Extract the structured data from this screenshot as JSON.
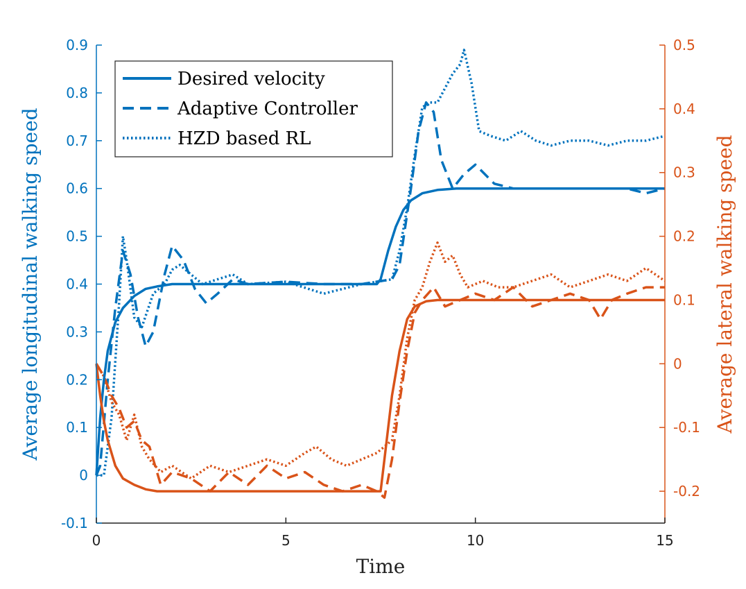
{
  "chart_data": {
    "type": "line",
    "title": "",
    "xlabel": "Time",
    "ylabel_left": "Average longitudinal walking speed",
    "ylabel_right": "Average lateral walking speed",
    "xlim": [
      0,
      15
    ],
    "ylim_left": [
      -0.1,
      0.9
    ],
    "ylim_right": [
      -0.25,
      0.5
    ],
    "xticks": [
      "0",
      "5",
      "10",
      "15"
    ],
    "xtick_values": [
      0,
      5,
      10,
      15
    ],
    "yticks_left": [
      "-0.1",
      "0",
      "0.1",
      "0.2",
      "0.3",
      "0.4",
      "0.5",
      "0.6",
      "0.7",
      "0.8",
      "0.9"
    ],
    "yticks_left_values": [
      -0.1,
      0,
      0.1,
      0.2,
      0.3,
      0.4,
      0.5,
      0.6,
      0.7,
      0.8,
      0.9
    ],
    "yticks_right": [
      "-0.2",
      "-0.1",
      "0",
      "0.1",
      "0.2",
      "0.3",
      "0.4",
      "0.5"
    ],
    "yticks_right_values": [
      -0.2,
      -0.1,
      0,
      0.1,
      0.2,
      0.3,
      0.4,
      0.5
    ],
    "grid": false,
    "legend_position": "top-left",
    "legend": [
      {
        "label": "Desired velocity",
        "style": "solid"
      },
      {
        "label": "Adaptive Controller",
        "style": "dashed"
      },
      {
        "label": "HZD based RL",
        "style": "dotted"
      }
    ],
    "colors": {
      "left": "#0072BD",
      "right": "#D95319"
    },
    "series": [
      {
        "name": "Desired velocity (longitudinal)",
        "axis": "left",
        "style": "solid",
        "x": [
          0,
          0.1,
          0.2,
          0.3,
          0.5,
          0.7,
          1.0,
          1.3,
          1.6,
          2.0,
          3.0,
          7.4,
          7.5,
          7.7,
          7.9,
          8.1,
          8.3,
          8.6,
          9.0,
          9.5,
          15
        ],
        "y": [
          0,
          0.12,
          0.2,
          0.26,
          0.32,
          0.35,
          0.375,
          0.39,
          0.395,
          0.4,
          0.4,
          0.4,
          0.41,
          0.47,
          0.52,
          0.555,
          0.575,
          0.59,
          0.597,
          0.6,
          0.6
        ]
      },
      {
        "name": "Adaptive Controller (longitudinal)",
        "axis": "left",
        "style": "dashed",
        "x": [
          0,
          0.1,
          0.3,
          0.5,
          0.7,
          0.9,
          1.1,
          1.3,
          1.5,
          1.8,
          2.0,
          2.3,
          2.6,
          2.9,
          3.2,
          3.6,
          4.0,
          5.0,
          6.0,
          7.0,
          7.8,
          8.0,
          8.3,
          8.5,
          8.7,
          8.9,
          9.1,
          9.4,
          9.7,
          10.0,
          10.5,
          11.0,
          12.0,
          13.0,
          14.0,
          14.5,
          15
        ],
        "y": [
          0,
          0.02,
          0.2,
          0.35,
          0.47,
          0.42,
          0.33,
          0.27,
          0.3,
          0.42,
          0.48,
          0.45,
          0.39,
          0.36,
          0.38,
          0.41,
          0.4,
          0.405,
          0.4,
          0.4,
          0.41,
          0.44,
          0.6,
          0.72,
          0.78,
          0.76,
          0.66,
          0.6,
          0.63,
          0.65,
          0.61,
          0.6,
          0.6,
          0.6,
          0.6,
          0.59,
          0.6
        ]
      },
      {
        "name": "HZD based RL (longitudinal)",
        "axis": "left",
        "style": "dotted",
        "x": [
          0,
          0.2,
          0.4,
          0.6,
          0.7,
          0.8,
          1.0,
          1.2,
          1.5,
          1.8,
          2.0,
          2.2,
          2.5,
          2.8,
          3.2,
          3.6,
          4.0,
          5.0,
          6.0,
          7.0,
          7.8,
          8.0,
          8.2,
          8.4,
          8.6,
          8.8,
          9.0,
          9.2,
          9.4,
          9.6,
          9.7,
          9.9,
          10.1,
          10.4,
          10.8,
          11.2,
          11.6,
          12.0,
          12.5,
          13.0,
          13.5,
          14.0,
          14.5,
          15
        ],
        "y": [
          0,
          0.0,
          0.12,
          0.36,
          0.5,
          0.45,
          0.33,
          0.31,
          0.38,
          0.4,
          0.43,
          0.44,
          0.42,
          0.4,
          0.41,
          0.42,
          0.4,
          0.405,
          0.38,
          0.4,
          0.41,
          0.47,
          0.56,
          0.67,
          0.77,
          0.78,
          0.78,
          0.81,
          0.84,
          0.86,
          0.89,
          0.82,
          0.72,
          0.71,
          0.7,
          0.72,
          0.7,
          0.69,
          0.7,
          0.7,
          0.69,
          0.7,
          0.7,
          0.71
        ]
      },
      {
        "name": "Desired velocity (lateral)",
        "axis": "right",
        "style": "solid",
        "x": [
          0,
          0.1,
          0.2,
          0.3,
          0.5,
          0.7,
          1.0,
          1.3,
          1.6,
          2.0,
          3.0,
          7.5,
          7.6,
          7.8,
          8.0,
          8.2,
          8.4,
          8.7,
          9.0,
          9.5,
          15
        ],
        "y": [
          0,
          -0.05,
          -0.09,
          -0.12,
          -0.16,
          -0.18,
          -0.19,
          -0.197,
          -0.2,
          -0.2,
          -0.2,
          -0.2,
          -0.15,
          -0.05,
          0.02,
          0.07,
          0.09,
          0.098,
          0.1,
          0.1,
          0.1
        ]
      },
      {
        "name": "Adaptive Controller (lateral)",
        "axis": "right",
        "style": "dashed",
        "x": [
          0,
          0.2,
          0.4,
          0.6,
          0.8,
          1.0,
          1.2,
          1.4,
          1.7,
          2.0,
          2.5,
          3.0,
          3.5,
          4.0,
          4.5,
          5.0,
          5.5,
          6.0,
          6.5,
          7.0,
          7.4,
          7.6,
          7.8,
          8.0,
          8.2,
          8.4,
          8.6,
          8.9,
          9.2,
          9.6,
          10.0,
          10.5,
          11.0,
          11.5,
          12.0,
          12.5,
          13.0,
          13.3,
          13.6,
          14.0,
          14.5,
          15
        ],
        "y": [
          0,
          -0.02,
          -0.05,
          -0.07,
          -0.1,
          -0.09,
          -0.12,
          -0.13,
          -0.19,
          -0.17,
          -0.18,
          -0.2,
          -0.17,
          -0.19,
          -0.16,
          -0.18,
          -0.17,
          -0.19,
          -0.2,
          -0.19,
          -0.2,
          -0.21,
          -0.15,
          -0.06,
          0.02,
          0.08,
          0.1,
          0.12,
          0.09,
          0.1,
          0.11,
          0.1,
          0.12,
          0.09,
          0.1,
          0.11,
          0.1,
          0.07,
          0.1,
          0.11,
          0.12,
          0.12
        ]
      },
      {
        "name": "HZD based RL (lateral)",
        "axis": "right",
        "style": "dotted",
        "x": [
          0,
          0.2,
          0.4,
          0.6,
          0.8,
          1.0,
          1.2,
          1.4,
          1.7,
          2.0,
          2.5,
          3.0,
          3.5,
          4.0,
          4.5,
          5.0,
          5.5,
          5.8,
          6.2,
          6.6,
          7.0,
          7.4,
          7.8,
          8.0,
          8.2,
          8.4,
          8.6,
          8.8,
          9.0,
          9.2,
          9.4,
          9.6,
          9.8,
          10.2,
          10.6,
          11.0,
          11.5,
          12.0,
          12.5,
          13.0,
          13.5,
          14.0,
          14.5,
          15
        ],
        "y": [
          0,
          -0.02,
          -0.06,
          -0.08,
          -0.12,
          -0.08,
          -0.13,
          -0.15,
          -0.17,
          -0.16,
          -0.18,
          -0.16,
          -0.17,
          -0.16,
          -0.15,
          -0.16,
          -0.14,
          -0.13,
          -0.15,
          -0.16,
          -0.15,
          -0.14,
          -0.12,
          -0.05,
          0.04,
          0.1,
          0.12,
          0.16,
          0.19,
          0.16,
          0.17,
          0.14,
          0.12,
          0.13,
          0.12,
          0.12,
          0.13,
          0.14,
          0.12,
          0.13,
          0.14,
          0.13,
          0.15,
          0.13
        ]
      }
    ]
  }
}
